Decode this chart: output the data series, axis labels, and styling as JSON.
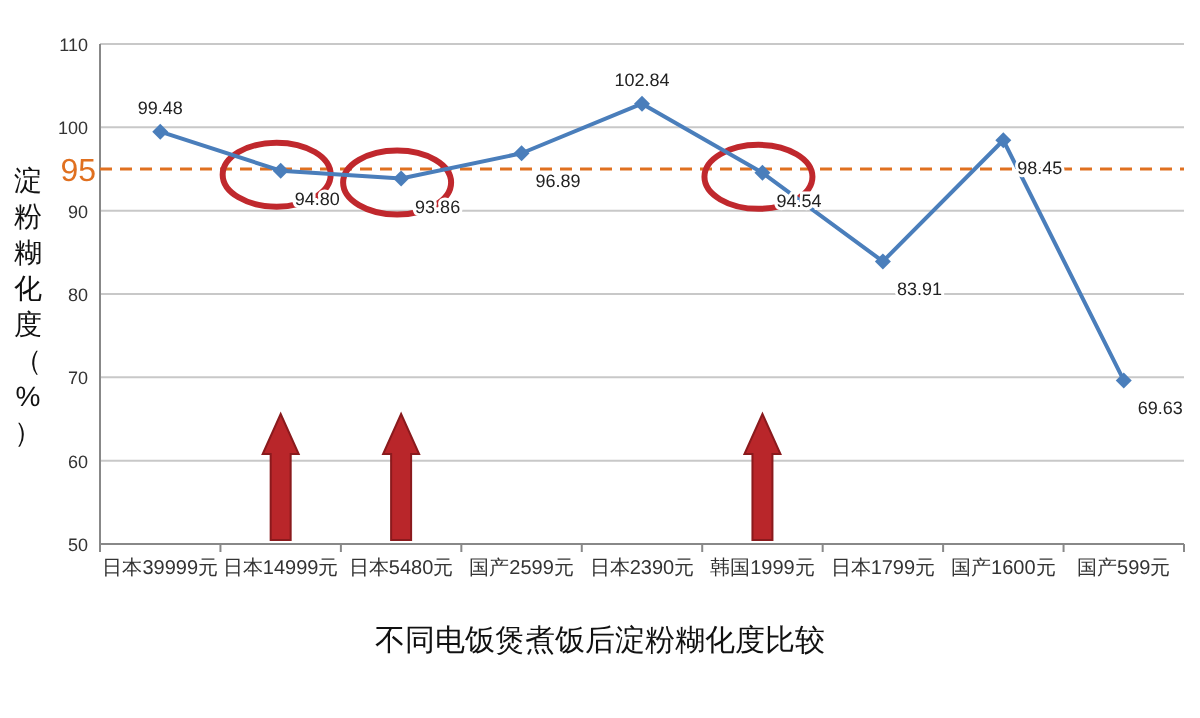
{
  "chart_data": {
    "type": "line",
    "title": "不同电饭煲煮饭后淀粉糊化度比较",
    "ylabel": "淀粉糊化度（%）",
    "categories": [
      "日本39999元",
      "日本14999元",
      "日本5480元",
      "国产2599元",
      "日本2390元",
      "韩国1999元",
      "日本1799元",
      "国产1600元",
      "国产599元"
    ],
    "series": [
      {
        "color": "#4a7ebb",
        "values": [
          99.48,
          94.8,
          93.86,
          96.89,
          102.84,
          94.54,
          83.91,
          98.45,
          69.63
        ],
        "value_labels": [
          "99.48",
          "94.80",
          "93.86",
          "96.89",
          "102.84",
          "94.54",
          "83.91",
          "98.45",
          "69.63"
        ]
      }
    ],
    "ylim": [
      50,
      110
    ],
    "yticks": [
      50,
      60,
      70,
      80,
      90,
      100,
      110
    ],
    "grid": "y",
    "marker": "diamond",
    "ref_lines": [
      {
        "axis": "y",
        "value": 95,
        "label": "95",
        "color": "#e07020",
        "line_style": "dashed"
      }
    ]
  }
}
